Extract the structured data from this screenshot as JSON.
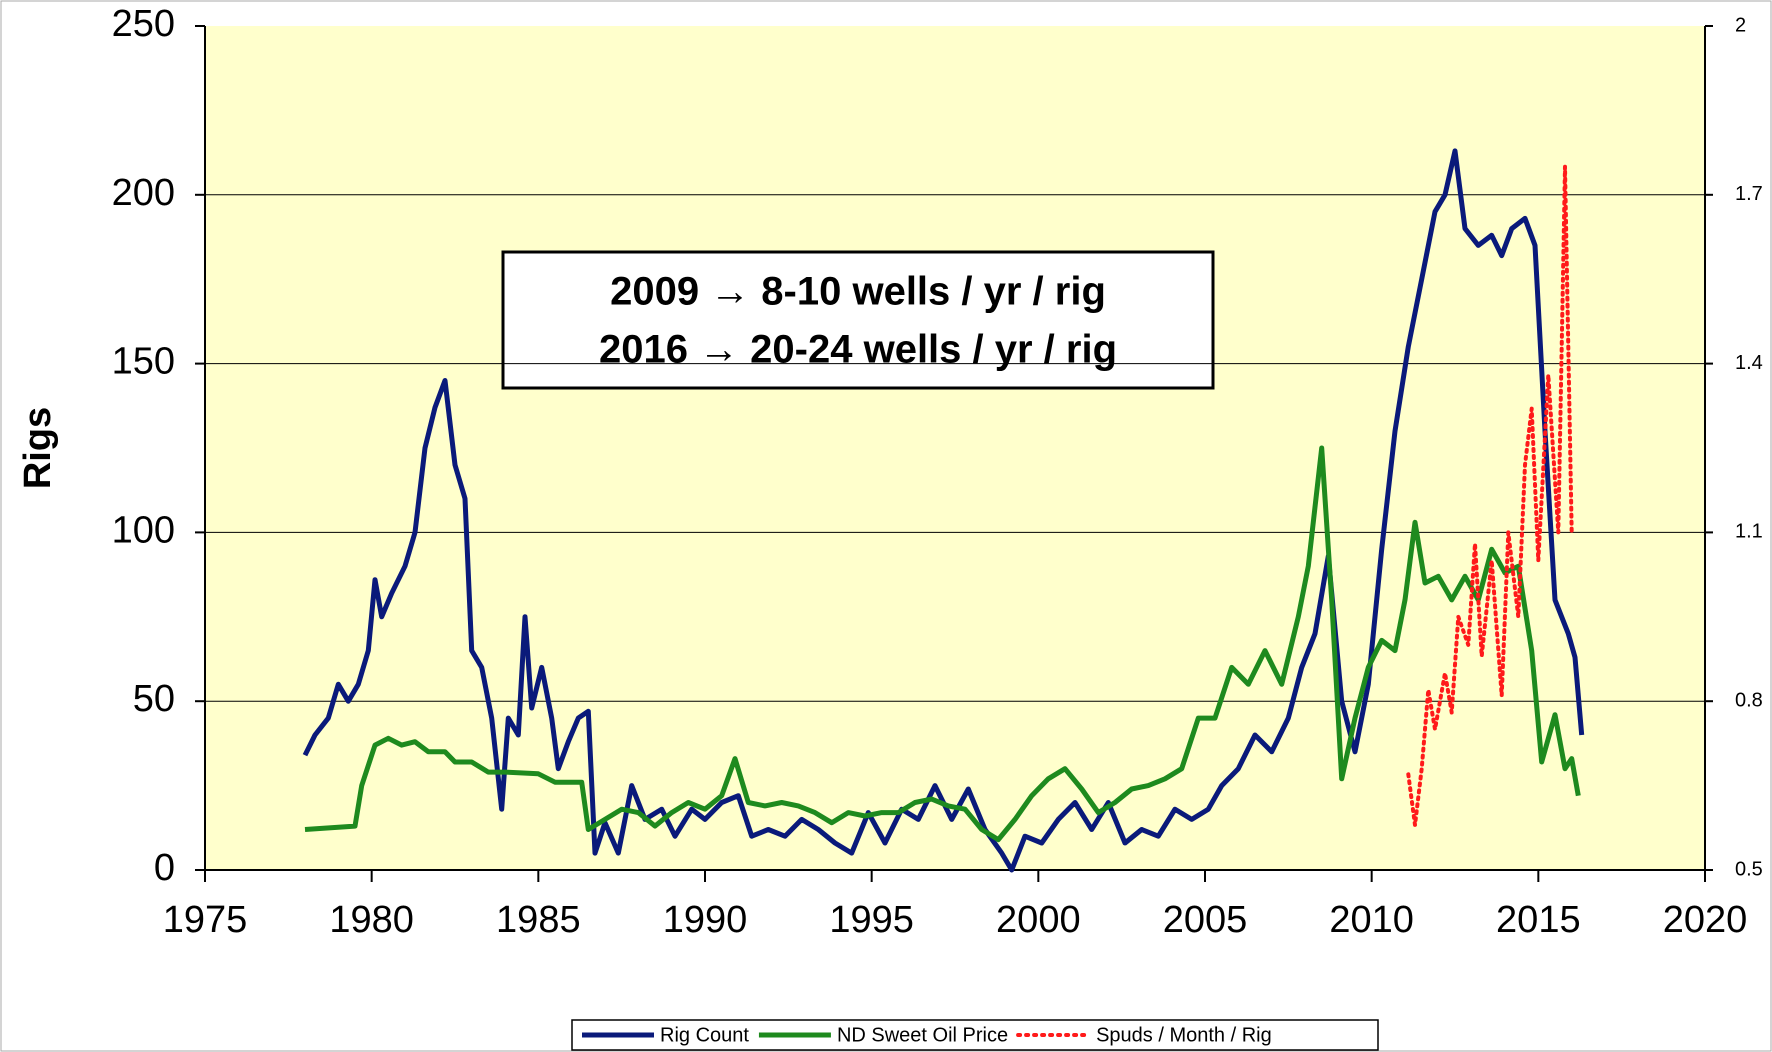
{
  "chart_data": {
    "type": "line",
    "ylabel": "Rigs",
    "annotation": [
      "2009 → 8-10 wells / yr / rig",
      "2016 → 20-24 wells / yr / rig"
    ],
    "xlim": [
      1975,
      2020
    ],
    "xticks": [
      1975,
      1980,
      1985,
      1990,
      1995,
      2000,
      2005,
      2010,
      2015,
      2020
    ],
    "ylim": [
      0,
      250
    ],
    "yticks": [
      0,
      50,
      100,
      150,
      200,
      250
    ],
    "y2lim": [
      0.5,
      2
    ],
    "y2ticks": [
      0.5,
      0.8,
      1.1,
      1.4,
      1.7,
      2
    ],
    "grid": true,
    "legend": "bottom",
    "series": [
      {
        "name": "Rig Count",
        "color": "#0a1a7a",
        "x": [
          1978.0,
          1978.3,
          1978.7,
          1979.0,
          1979.3,
          1979.6,
          1979.9,
          1980.1,
          1980.3,
          1980.6,
          1981.0,
          1981.3,
          1981.6,
          1981.9,
          1982.2,
          1982.5,
          1982.8,
          1983.0,
          1983.3,
          1983.6,
          1983.9,
          1984.1,
          1984.4,
          1984.6,
          1984.8,
          1985.1,
          1985.4,
          1985.6,
          1985.9,
          1986.2,
          1986.5,
          1986.7,
          1987.0,
          1987.4,
          1987.8,
          1988.2,
          1988.7,
          1989.1,
          1989.6,
          1990.0,
          1990.5,
          1991.0,
          1991.4,
          1991.9,
          1992.4,
          1992.9,
          1993.4,
          1993.9,
          1994.4,
          1994.9,
          1995.4,
          1995.9,
          1996.4,
          1996.9,
          1997.4,
          1997.9,
          1998.4,
          1998.9,
          1999.2,
          1999.6,
          2000.1,
          2000.6,
          2001.1,
          2001.6,
          2002.1,
          2002.6,
          2003.1,
          2003.6,
          2004.1,
          2004.6,
          2005.1,
          2005.5,
          2006.0,
          2006.5,
          2007.0,
          2007.5,
          2007.9,
          2008.3,
          2008.7,
          2009.1,
          2009.5,
          2009.9,
          2010.3,
          2010.7,
          2011.1,
          2011.5,
          2011.9,
          2012.2,
          2012.5,
          2012.8,
          2013.2,
          2013.6,
          2013.9,
          2014.2,
          2014.6,
          2014.9,
          2015.2,
          2015.5,
          2015.9,
          2016.1,
          2016.3
        ],
        "values": [
          34,
          40,
          45,
          55,
          50,
          55,
          65,
          86,
          75,
          82,
          90,
          100,
          125,
          137,
          145,
          120,
          110,
          65,
          60,
          45,
          18,
          45,
          40,
          75,
          48,
          60,
          45,
          30,
          38,
          45,
          47,
          5,
          14,
          5,
          25,
          15,
          18,
          10,
          18,
          15,
          20,
          22,
          10,
          12,
          10,
          15,
          12,
          8,
          5,
          17,
          8,
          18,
          15,
          25,
          15,
          24,
          12,
          5,
          0,
          10,
          8,
          15,
          20,
          12,
          20,
          8,
          12,
          10,
          18,
          15,
          18,
          25,
          30,
          40,
          35,
          45,
          60,
          70,
          93,
          50,
          35,
          55,
          95,
          130,
          155,
          175,
          195,
          200,
          213,
          190,
          185,
          188,
          182,
          190,
          193,
          185,
          130,
          80,
          70,
          63,
          40
        ]
      },
      {
        "name": "ND Sweet Oil Price",
        "color": "#1e8a1e",
        "x": [
          1978.0,
          1979.5,
          1979.7,
          1980.1,
          1980.5,
          1980.9,
          1981.3,
          1981.7,
          1982.2,
          1982.5,
          1983.0,
          1983.5,
          1984.0,
          1985.0,
          1985.5,
          1986.3,
          1986.5,
          1987.0,
          1987.5,
          1988.0,
          1988.5,
          1989.0,
          1989.5,
          1990.0,
          1990.5,
          1990.9,
          1991.3,
          1991.8,
          1992.3,
          1992.8,
          1993.3,
          1993.8,
          1994.3,
          1994.8,
          1995.3,
          1995.8,
          1996.3,
          1996.8,
          1997.3,
          1997.8,
          1998.3,
          1998.8,
          1999.3,
          1999.8,
          2000.3,
          2000.8,
          2001.3,
          2001.8,
          2002.3,
          2002.8,
          2003.3,
          2003.8,
          2004.3,
          2004.8,
          2005.3,
          2005.8,
          2006.3,
          2006.8,
          2007.3,
          2007.8,
          2008.1,
          2008.5,
          2008.8,
          2009.1,
          2009.5,
          2009.9,
          2010.3,
          2010.7,
          2011.0,
          2011.3,
          2011.6,
          2012.0,
          2012.4,
          2012.8,
          2013.2,
          2013.6,
          2014.0,
          2014.4,
          2014.8,
          2015.1,
          2015.5,
          2015.8,
          2016.0,
          2016.2
        ],
        "values": [
          12,
          13,
          25,
          37,
          39,
          37,
          38,
          35,
          35,
          32,
          32,
          29,
          29,
          28.5,
          26,
          26,
          12,
          15,
          18,
          17,
          13,
          17,
          20,
          18,
          22,
          33,
          20,
          19,
          20,
          19,
          17,
          14,
          17,
          16,
          17,
          17,
          20,
          21,
          19,
          18,
          12,
          9,
          15,
          22,
          27,
          30,
          24,
          17,
          20,
          24,
          25,
          27,
          30,
          45,
          45,
          60,
          55,
          65,
          55,
          75,
          90,
          125,
          80,
          27,
          45,
          60,
          68,
          65,
          80,
          103,
          85,
          87,
          80,
          87,
          80,
          95,
          88,
          90,
          65,
          32,
          46,
          30,
          33,
          22
        ]
      },
      {
        "name": "Spuds / Month / Rig",
        "color": "#ff1a1a",
        "axis": "y2",
        "dash": "dotted",
        "x": [
          2011.1,
          2011.3,
          2011.5,
          2011.7,
          2011.9,
          2012.2,
          2012.4,
          2012.6,
          2012.9,
          2013.1,
          2013.3,
          2013.6,
          2013.9,
          2014.1,
          2014.4,
          2014.6,
          2014.8,
          2015.0,
          2015.3,
          2015.6,
          2015.8,
          2016.0
        ],
        "values": [
          0.67,
          0.58,
          0.68,
          0.82,
          0.75,
          0.85,
          0.78,
          0.95,
          0.9,
          1.08,
          0.88,
          1.05,
          0.81,
          1.1,
          0.95,
          1.22,
          1.32,
          1.05,
          1.38,
          1.1,
          1.75,
          1.1
        ]
      }
    ]
  }
}
